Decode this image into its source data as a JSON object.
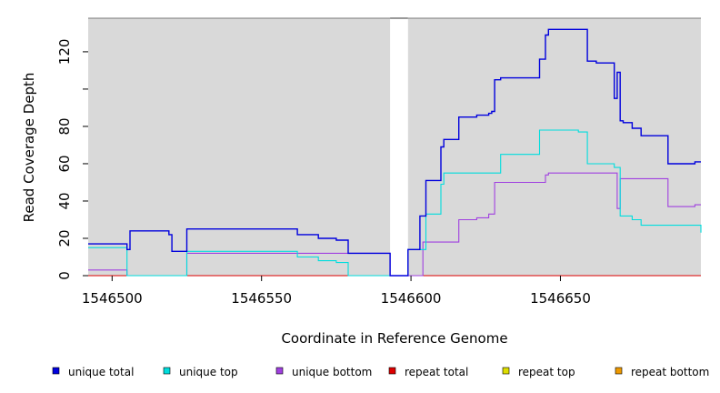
{
  "chart_data": {
    "type": "line",
    "xlabel": "Coordinate in Reference Genome",
    "ylabel": "Read Coverage Depth",
    "xlim": [
      1546492,
      1546697
    ],
    "ylim": [
      0,
      138
    ],
    "x_ticks": [
      1546500,
      1546550,
      1546600,
      1546650
    ],
    "y_ticks": [
      0,
      20,
      40,
      60,
      80,
      100,
      120
    ],
    "y_tick_labels": [
      "0",
      "20",
      "40",
      "60",
      "80",
      "",
      "120"
    ],
    "gap": [
      1546593,
      1546599
    ],
    "grid": false,
    "legend_position": "bottom",
    "series": [
      {
        "name": "unique total",
        "color": "#0000dd",
        "x": [
          1546492,
          1546505,
          1546506,
          1546519,
          1546520,
          1546525,
          1546562,
          1546569,
          1546575,
          1546579,
          1546593,
          1546599,
          1546603,
          1546605,
          1546610,
          1546611,
          1546616,
          1546622,
          1546626,
          1546627,
          1546628,
          1546630,
          1546643,
          1546645,
          1546646,
          1546656,
          1546659,
          1546662,
          1546668,
          1546669,
          1546670,
          1546671,
          1546674,
          1546677,
          1546686,
          1546695,
          1546697
        ],
        "y": [
          17,
          14,
          24,
          22,
          13,
          25,
          22,
          20,
          19,
          12,
          0,
          14,
          32,
          51,
          69,
          73,
          85,
          86,
          87,
          88,
          105,
          106,
          116,
          129,
          132,
          132,
          115,
          114,
          95,
          109,
          83,
          82,
          79,
          75,
          60,
          61,
          61
        ]
      },
      {
        "name": "unique top",
        "color": "#00dddd",
        "x": [
          1546492,
          1546505,
          1546525,
          1546562,
          1546569,
          1546575,
          1546579,
          1546593,
          1546599,
          1546605,
          1546610,
          1546611,
          1546630,
          1546643,
          1546656,
          1546659,
          1546668,
          1546670,
          1546674,
          1546677,
          1546697
        ],
        "y": [
          15,
          0,
          13,
          10,
          8,
          7,
          0,
          0,
          14,
          33,
          49,
          55,
          65,
          78,
          77,
          60,
          58,
          32,
          30,
          27,
          23
        ]
      },
      {
        "name": "unique bottom",
        "color": "#a040e0",
        "x": [
          1546492,
          1546505,
          1546525,
          1546593,
          1546604,
          1546616,
          1546622,
          1546626,
          1546628,
          1546645,
          1546646,
          1546668,
          1546669,
          1546670,
          1546686,
          1546695,
          1546697
        ],
        "y": [
          3,
          0,
          12,
          0,
          18,
          30,
          31,
          33,
          50,
          54,
          55,
          55,
          36,
          52,
          37,
          38,
          38
        ]
      },
      {
        "name": "repeat total",
        "color": "#dd0000",
        "x": [
          1546492,
          1546697
        ],
        "y": [
          0,
          0
        ]
      },
      {
        "name": "repeat top",
        "color": "#dddd00",
        "x": [
          1546492,
          1546697
        ],
        "y": [
          0,
          0
        ]
      },
      {
        "name": "repeat bottom",
        "color": "#ee9900",
        "x": [
          1546492,
          1546697
        ],
        "y": [
          0,
          0
        ]
      }
    ]
  },
  "colors": {
    "plot_background": "#d9d9d9",
    "gap_background": "#ffffff"
  }
}
